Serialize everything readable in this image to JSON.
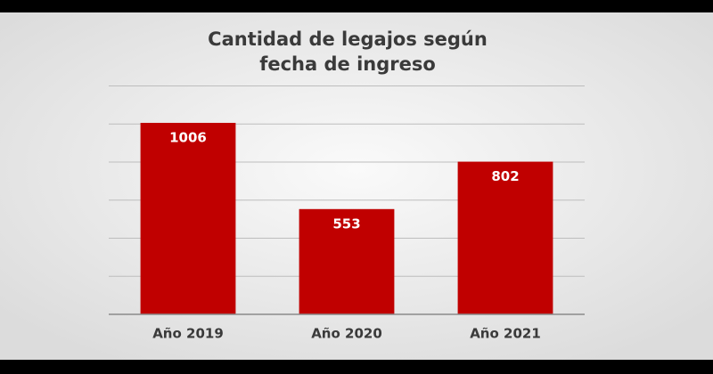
{
  "chart_data": {
    "type": "bar",
    "title": [
      "Cantidad de legajos según",
      "fecha de ingreso"
    ],
    "categories": [
      "Año 2019",
      "Año 2020",
      "Año 2021"
    ],
    "values": [
      1006,
      553,
      802
    ],
    "color": "#c00000",
    "ylim": [
      0,
      1200
    ],
    "yticks": [
      0,
      200,
      400,
      600,
      800,
      1000,
      1200
    ],
    "grid": true
  }
}
